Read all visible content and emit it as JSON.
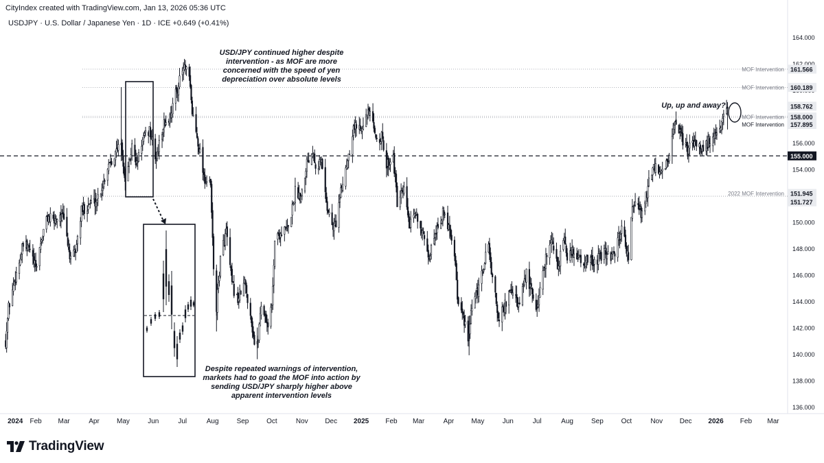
{
  "header": {
    "created_line": "CityIndex created with TradingView.com, Jan 13, 2026 05:36 UTC",
    "symbol_line": "USDJPY · U.S. Dollar / Japanese Yen · 1D · ICE  +0.649 (+0.41%)"
  },
  "footer": {
    "brand": "TradingView",
    "logo_icon": "tradingview-logo-icon"
  },
  "colors": {
    "candle": "#131722",
    "grid": "#b2b5be",
    "price_label_bg": "#e9ebef",
    "black_label_bg": "#131722"
  },
  "chart_data": {
    "type": "candlestick",
    "title": "",
    "xlabel": "",
    "ylabel": "",
    "ylim": [
      135,
      165.5
    ],
    "y_ticks": [
      "164.000",
      "162.000",
      "160.000",
      "158.000",
      "156.000",
      "154.000",
      "152.000",
      "150.000",
      "148.000",
      "146.000",
      "144.000",
      "142.000",
      "140.000",
      "138.000",
      "136.000"
    ],
    "x_ticks": [
      "2024",
      "Feb",
      "Mar",
      "Apr",
      "May",
      "Jun",
      "Jul",
      "Aug",
      "Sep",
      "Oct",
      "Nov",
      "Dec",
      "2025",
      "Feb",
      "Mar",
      "Apr",
      "May",
      "Jun",
      "Jul",
      "Aug",
      "Sep",
      "Oct",
      "Nov",
      "Dec",
      "2026",
      "Feb",
      "Mar"
    ],
    "x_tick_bold": [
      "2024",
      "2025",
      "2026"
    ],
    "grid": false,
    "price_path_daily_close_approx": [
      [
        "2024-01-01",
        141.0
      ],
      [
        "2024-01-04",
        143.5
      ],
      [
        "2024-01-10",
        145.5
      ],
      [
        "2024-01-16",
        147.3
      ],
      [
        "2024-01-19",
        148.2
      ],
      [
        "2024-01-26",
        147.9
      ],
      [
        "2024-02-01",
        146.4
      ],
      [
        "2024-02-06",
        148.4
      ],
      [
        "2024-02-13",
        150.4
      ],
      [
        "2024-02-19",
        150.0
      ],
      [
        "2024-02-26",
        150.6
      ],
      [
        "2024-03-01",
        150.1
      ],
      [
        "2024-03-08",
        147.0
      ],
      [
        "2024-03-13",
        147.8
      ],
      [
        "2024-03-19",
        150.8
      ],
      [
        "2024-03-27",
        151.4
      ],
      [
        "2024-04-03",
        151.6
      ],
      [
        "2024-04-10",
        152.8
      ],
      [
        "2024-04-16",
        154.5
      ],
      [
        "2024-04-24",
        155.3
      ],
      [
        "2024-04-29",
        156.2
      ],
      [
        "2024-05-02",
        153.2
      ],
      [
        "2024-05-06",
        153.9
      ],
      [
        "2024-05-10",
        155.7
      ],
      [
        "2024-05-15",
        154.3
      ],
      [
        "2024-05-20",
        156.0
      ],
      [
        "2024-05-28",
        157.0
      ],
      [
        "2024-06-04",
        154.7
      ],
      [
        "2024-06-11",
        157.3
      ],
      [
        "2024-06-18",
        157.9
      ],
      [
        "2024-06-24",
        159.7
      ],
      [
        "2024-07-01",
        161.4
      ],
      [
        "2024-07-03",
        161.7
      ],
      [
        "2024-07-08",
        160.8
      ],
      [
        "2024-07-11",
        158.3
      ],
      [
        "2024-07-17",
        156.1
      ],
      [
        "2024-07-24",
        153.2
      ],
      [
        "2024-07-30",
        152.7
      ],
      [
        "2024-08-02",
        146.5
      ],
      [
        "2024-08-05",
        143.5
      ],
      [
        "2024-08-09",
        147.2
      ],
      [
        "2024-08-15",
        149.3
      ],
      [
        "2024-08-21",
        145.2
      ],
      [
        "2024-08-27",
        144.1
      ],
      [
        "2024-09-03",
        145.4
      ],
      [
        "2024-09-09",
        143.1
      ],
      [
        "2024-09-13",
        140.8
      ],
      [
        "2024-09-16",
        140.6
      ],
      [
        "2024-09-20",
        143.8
      ],
      [
        "2024-09-27",
        142.2
      ],
      [
        "2024-10-01",
        143.6
      ],
      [
        "2024-10-04",
        148.7
      ],
      [
        "2024-10-11",
        149.2
      ],
      [
        "2024-10-18",
        149.5
      ],
      [
        "2024-10-25",
        152.3
      ],
      [
        "2024-10-31",
        152.0
      ],
      [
        "2024-11-06",
        154.6
      ],
      [
        "2024-11-13",
        155.5
      ],
      [
        "2024-11-15",
        154.3
      ],
      [
        "2024-11-21",
        154.6
      ],
      [
        "2024-11-27",
        151.1
      ],
      [
        "2024-12-03",
        149.5
      ],
      [
        "2024-12-06",
        150.0
      ],
      [
        "2024-12-12",
        152.6
      ],
      [
        "2024-12-18",
        154.8
      ],
      [
        "2024-12-24",
        157.2
      ],
      [
        "2024-12-30",
        157.2
      ],
      [
        "2025-01-07",
        158.0
      ],
      [
        "2025-01-10",
        158.3
      ],
      [
        "2025-01-15",
        156.5
      ],
      [
        "2025-01-22",
        156.4
      ],
      [
        "2025-01-27",
        154.3
      ],
      [
        "2025-02-03",
        155.0
      ],
      [
        "2025-02-07",
        151.4
      ],
      [
        "2025-02-14",
        152.3
      ],
      [
        "2025-02-20",
        149.6
      ],
      [
        "2025-02-27",
        150.7
      ],
      [
        "2025-03-04",
        149.4
      ],
      [
        "2025-03-11",
        147.0
      ],
      [
        "2025-03-18",
        149.3
      ],
      [
        "2025-03-26",
        150.6
      ],
      [
        "2025-04-02",
        149.6
      ],
      [
        "2025-04-07",
        147.7
      ],
      [
        "2025-04-11",
        143.5
      ],
      [
        "2025-04-17",
        142.6
      ],
      [
        "2025-04-21",
        140.7
      ],
      [
        "2025-04-25",
        143.6
      ],
      [
        "2025-05-02",
        144.9
      ],
      [
        "2025-05-12",
        148.4
      ],
      [
        "2025-05-16",
        145.6
      ],
      [
        "2025-05-23",
        142.5
      ],
      [
        "2025-05-30",
        144.0
      ],
      [
        "2025-06-06",
        144.8
      ],
      [
        "2025-06-12",
        143.5
      ],
      [
        "2025-06-20",
        146.1
      ],
      [
        "2025-06-26",
        144.4
      ],
      [
        "2025-07-01",
        143.5
      ],
      [
        "2025-07-08",
        146.6
      ],
      [
        "2025-07-15",
        148.8
      ],
      [
        "2025-07-22",
        146.6
      ],
      [
        "2025-07-29",
        148.5
      ],
      [
        "2025-08-01",
        147.4
      ],
      [
        "2025-08-08",
        147.8
      ],
      [
        "2025-08-15",
        147.1
      ],
      [
        "2025-08-22",
        147.0
      ],
      [
        "2025-08-29",
        147.0
      ],
      [
        "2025-09-05",
        147.4
      ],
      [
        "2025-09-12",
        147.7
      ],
      [
        "2025-09-18",
        147.3
      ],
      [
        "2025-09-26",
        149.6
      ],
      [
        "2025-10-03",
        147.4
      ],
      [
        "2025-10-07",
        151.0
      ],
      [
        "2025-10-10",
        151.3
      ],
      [
        "2025-10-17",
        150.6
      ],
      [
        "2025-10-24",
        152.9
      ],
      [
        "2025-10-30",
        154.1
      ],
      [
        "2025-11-06",
        153.5
      ],
      [
        "2025-11-13",
        154.8
      ],
      [
        "2025-11-20",
        157.4
      ],
      [
        "2025-11-27",
        156.3
      ],
      [
        "2025-12-03",
        155.4
      ],
      [
        "2025-12-10",
        156.1
      ],
      [
        "2025-12-17",
        155.6
      ],
      [
        "2025-12-23",
        155.9
      ],
      [
        "2025-12-29",
        156.4
      ],
      [
        "2026-01-05",
        156.7
      ],
      [
        "2026-01-09",
        157.9
      ],
      [
        "2026-01-13",
        158.3
      ]
    ],
    "inset_box_label": "",
    "price_labels": [
      {
        "price": 161.566,
        "label": "MOF Intervention",
        "value": "161.566",
        "style": "grey"
      },
      {
        "price": 160.189,
        "label": "MOF Intervention",
        "value": "160.189",
        "style": "grey"
      },
      {
        "price": 158.762,
        "label": "",
        "value": "158.762",
        "style": "grey"
      },
      {
        "price": 158.0,
        "label": "MOF Intervention",
        "value": "158.000",
        "style": "grey"
      },
      {
        "price": 157.895,
        "label": "MOF Intervention",
        "value": "157.895",
        "style": "grey-dark"
      },
      {
        "price": 155.0,
        "label": "",
        "value": "155.000",
        "style": "dark"
      },
      {
        "price": 151.945,
        "label": "2022 MOF Intervention",
        "value": "151.945",
        "style": "grey"
      },
      {
        "price": 151.727,
        "label": "",
        "value": "151.727",
        "style": "grey"
      }
    ],
    "annotations": {
      "top": [
        "USD/JPY continued higher despite",
        "intervention - as MOF are more",
        "concerned with the speed of yen",
        "depreciation over absolute levels"
      ],
      "bottom": [
        "Despite repeated warnings of intervention,",
        "markets had to goad the MOF into action by",
        "sending USD/JPY sharply higher above",
        "apparent intervention levels"
      ],
      "right": "Up, up and away?"
    }
  }
}
